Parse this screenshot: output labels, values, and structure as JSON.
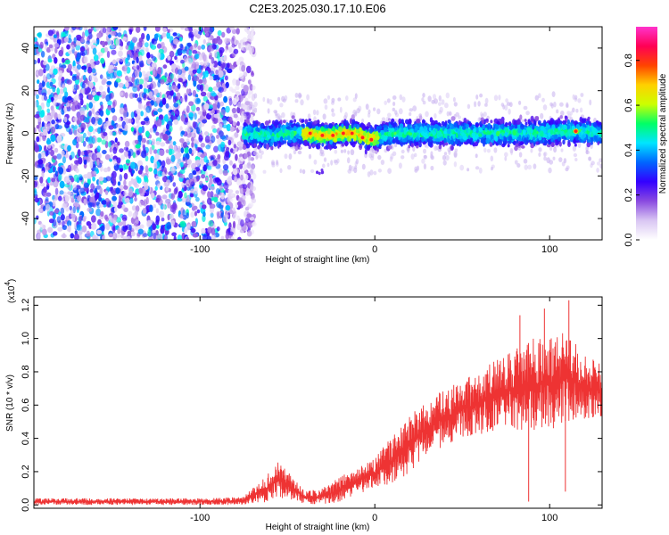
{
  "title": "C2E3.2025.030.17.10.E06",
  "chart_data": [
    {
      "id": "spectrogram",
      "type": "heatmap",
      "xlabel": "Height of straight line (km)",
      "ylabel": "Frequency (Hz)",
      "xlim": [
        -195,
        130
      ],
      "ylim": [
        -50,
        50
      ],
      "x_ticks": [
        -100,
        0,
        100
      ],
      "x_tick_labels": [
        "-100",
        "0",
        "100"
      ],
      "y_ticks": [
        -40,
        -20,
        0,
        20,
        40
      ],
      "y_tick_labels": [
        "-40",
        "-20",
        "0",
        "20",
        "40"
      ],
      "regions": [
        {
          "x_range": [
            -195,
            -75
          ],
          "freq_range": [
            -50,
            50
          ],
          "typical_amplitude": 0.08,
          "description_shown": "noise"
        },
        {
          "x_range": [
            -75,
            130
          ],
          "freq_center": 0,
          "freq_halfwidth": 6,
          "typical_amplitude": 0.35
        }
      ],
      "track": [
        {
          "x": -75,
          "y": 0
        },
        {
          "x": -60,
          "y": -1
        },
        {
          "x": -50,
          "y": 0
        },
        {
          "x": -40,
          "y": 0
        },
        {
          "x": -30,
          "y": -1
        },
        {
          "x": -25,
          "y": -1
        },
        {
          "x": -20,
          "y": 0
        },
        {
          "x": -10,
          "y": 0
        },
        {
          "x": -5,
          "y": -2
        },
        {
          "x": 0,
          "y": -2
        },
        {
          "x": 10,
          "y": 0
        },
        {
          "x": 30,
          "y": 0
        },
        {
          "x": 50,
          "y": 0
        },
        {
          "x": 70,
          "y": 0
        },
        {
          "x": 90,
          "y": 0
        },
        {
          "x": 110,
          "y": 1
        },
        {
          "x": 130,
          "y": 0
        }
      ],
      "peak_points": [
        {
          "x": -37,
          "y": 0
        },
        {
          "x": -30,
          "y": -1
        },
        {
          "x": -24,
          "y": -1
        },
        {
          "x": -18,
          "y": 0
        },
        {
          "x": -13,
          "y": 0
        },
        {
          "x": -7,
          "y": -2
        },
        {
          "x": -2,
          "y": -3
        },
        {
          "x": 115,
          "y": 1
        }
      ],
      "colorbar": {
        "label": "Normalized spectral amplitude",
        "range": [
          0.0,
          0.95
        ],
        "ticks": [
          0.0,
          0.2,
          0.4,
          0.6,
          0.8
        ],
        "tick_labels": [
          "0.0",
          "0.2",
          "0.4",
          "0.6",
          "0.8"
        ],
        "colors": [
          "#ffffff",
          "#d9c6f3",
          "#8a4ae0",
          "#3300ff",
          "#0066ff",
          "#00e5ff",
          "#00ff66",
          "#ccff00",
          "#ffd000",
          "#ff4400",
          "#ff0055",
          "#ff33cc"
        ]
      }
    },
    {
      "id": "snr",
      "type": "line",
      "xlabel": "Height of straight line (km)",
      "ylabel": "SNR (10 * v/v)",
      "y_multiplier_label": "(x10",
      "y_multiplier_exp": "4",
      "y_multiplier_close": ")",
      "xlim": [
        -195,
        130
      ],
      "ylim": [
        -0.02,
        1.25
      ],
      "x_ticks": [
        -100,
        0,
        100
      ],
      "x_tick_labels": [
        "-100",
        "0",
        "100"
      ],
      "y_ticks": [
        0.0,
        0.2,
        0.4,
        0.6,
        0.8,
        1.0,
        1.2
      ],
      "y_tick_labels": [
        "0.0",
        "0.2",
        "0.4",
        "0.6",
        "0.8",
        "1.0",
        "1.2"
      ],
      "color": "#ee3333",
      "envelope": [
        {
          "x": -195,
          "lo": 0.0,
          "hi": 0.04
        },
        {
          "x": -150,
          "lo": 0.0,
          "hi": 0.04
        },
        {
          "x": -100,
          "lo": 0.0,
          "hi": 0.04
        },
        {
          "x": -75,
          "lo": 0.0,
          "hi": 0.05
        },
        {
          "x": -60,
          "lo": 0.02,
          "hi": 0.2
        },
        {
          "x": -55,
          "lo": 0.03,
          "hi": 0.27
        },
        {
          "x": -48,
          "lo": 0.02,
          "hi": 0.18
        },
        {
          "x": -40,
          "lo": 0.01,
          "hi": 0.08
        },
        {
          "x": -30,
          "lo": 0.0,
          "hi": 0.1
        },
        {
          "x": -20,
          "lo": 0.02,
          "hi": 0.17
        },
        {
          "x": -10,
          "lo": 0.06,
          "hi": 0.22
        },
        {
          "x": 0,
          "lo": 0.1,
          "hi": 0.28
        },
        {
          "x": 10,
          "lo": 0.1,
          "hi": 0.42
        },
        {
          "x": 20,
          "lo": 0.2,
          "hi": 0.55
        },
        {
          "x": 30,
          "lo": 0.3,
          "hi": 0.62
        },
        {
          "x": 40,
          "lo": 0.35,
          "hi": 0.7
        },
        {
          "x": 50,
          "lo": 0.4,
          "hi": 0.75
        },
        {
          "x": 60,
          "lo": 0.42,
          "hi": 0.8
        },
        {
          "x": 70,
          "lo": 0.45,
          "hi": 0.88
        },
        {
          "x": 80,
          "lo": 0.45,
          "hi": 0.95
        },
        {
          "x": 90,
          "lo": 0.45,
          "hi": 1.0
        },
        {
          "x": 100,
          "lo": 0.45,
          "hi": 1.02
        },
        {
          "x": 110,
          "lo": 0.48,
          "hi": 1.05
        },
        {
          "x": 120,
          "lo": 0.5,
          "hi": 0.9
        },
        {
          "x": 130,
          "lo": 0.52,
          "hi": 0.85
        }
      ],
      "spikes": [
        {
          "x": 83,
          "y": 1.14
        },
        {
          "x": 97,
          "y": 1.18
        },
        {
          "x": 111,
          "y": 1.23
        },
        {
          "x": 88,
          "y": 0.02
        },
        {
          "x": 109,
          "y": 0.08
        }
      ]
    }
  ]
}
